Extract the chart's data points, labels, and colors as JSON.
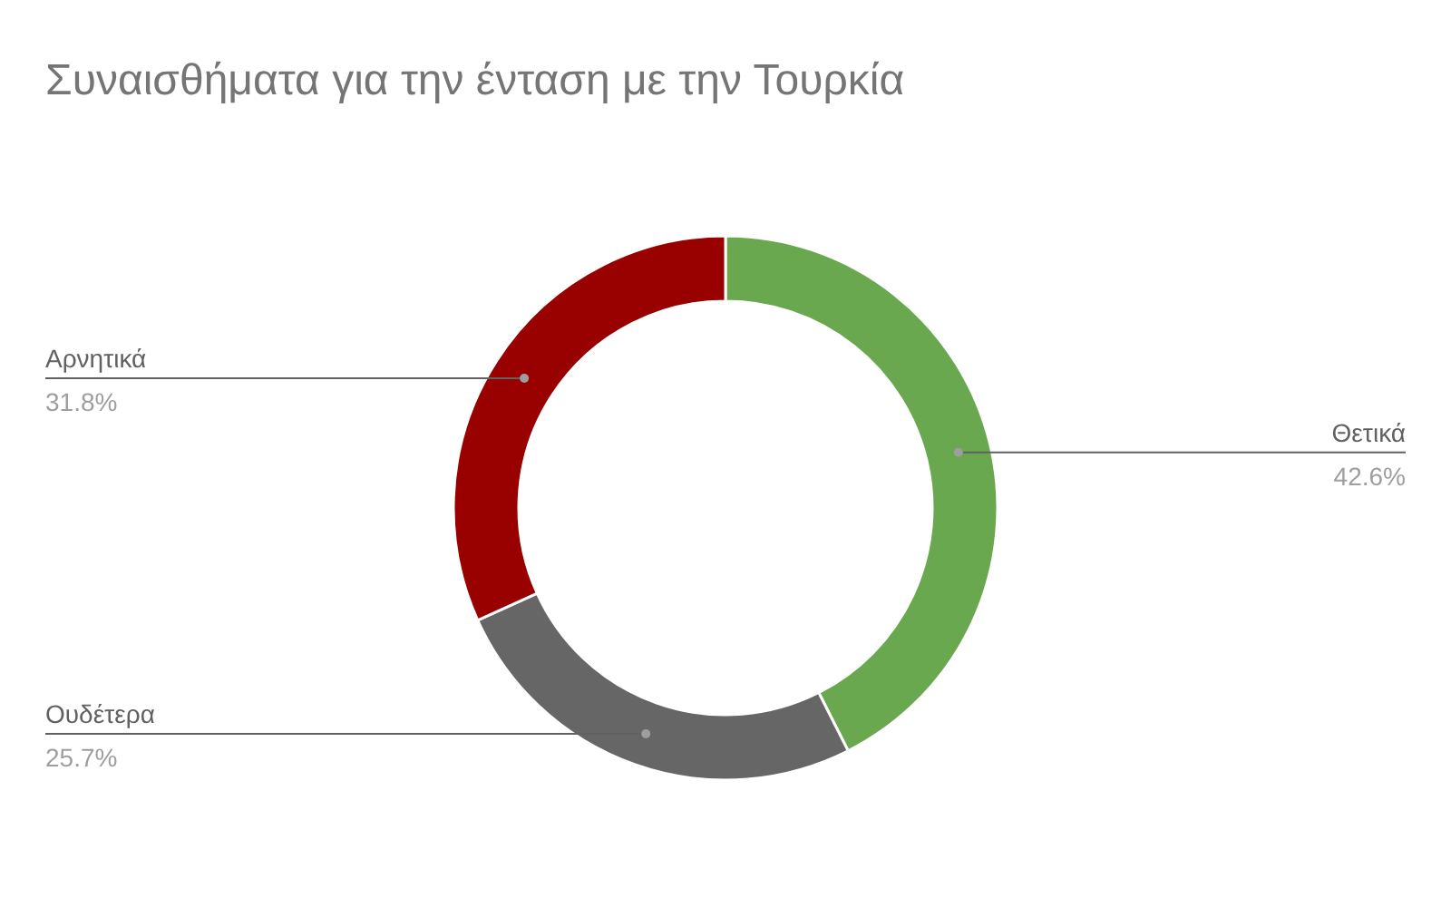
{
  "chart_data": {
    "type": "donut",
    "title": "Συναισθήματα για την ένταση με την Τουρκία",
    "categories": [
      "Θετικά",
      "Ουδέτερα",
      "Αρνητικά"
    ],
    "values": [
      42.6,
      25.7,
      31.8
    ],
    "colors": [
      "#6aa84f",
      "#666666",
      "#990000"
    ],
    "value_labels": [
      "42.6%",
      "25.7%",
      "31.8%"
    ]
  }
}
